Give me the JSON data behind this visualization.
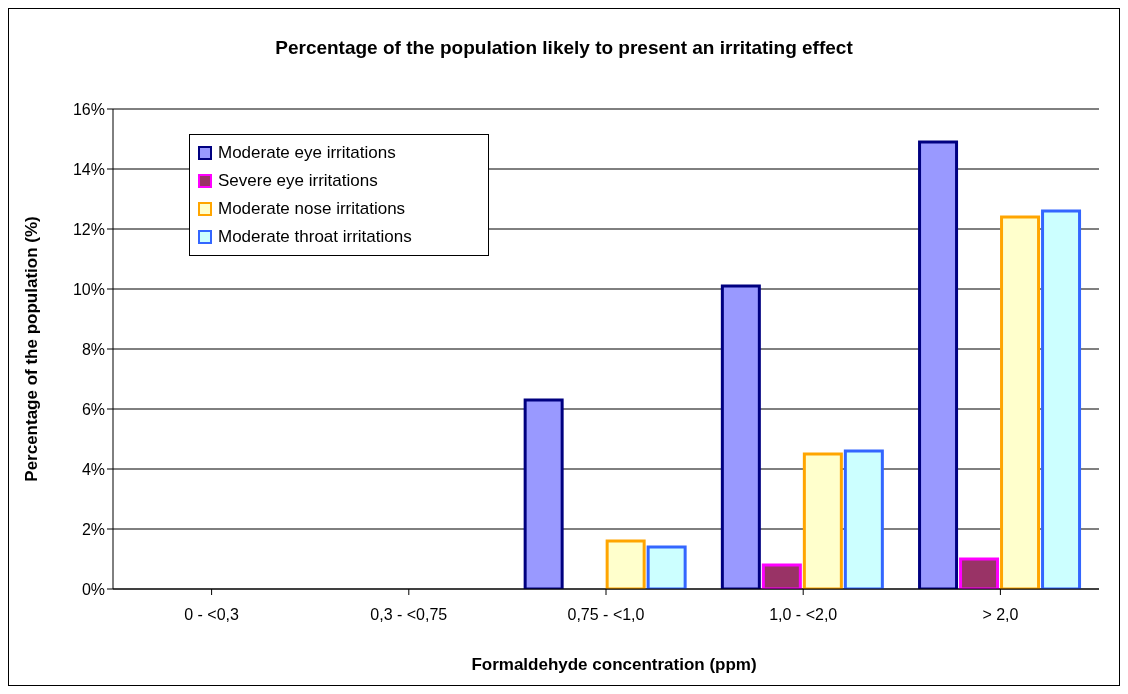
{
  "chart_data": {
    "type": "bar",
    "title": "Percentage of the population likely to present an irritating effect",
    "xlabel": "Formaldehyde concentration (ppm)",
    "ylabel": "Percentage of the population (%)",
    "categories": [
      "0 - <0,3",
      "0,3 - <0,75",
      "0,75 - <1,0",
      "1,0 - <2,0",
      "> 2,0"
    ],
    "series": [
      {
        "name": "Moderate eye irritations",
        "color": "#9999ff",
        "values": [
          0,
          0,
          6.3,
          10.1,
          14.9
        ]
      },
      {
        "name": "Severe eye irritations",
        "color": "#993366",
        "values": [
          0,
          0,
          0,
          0.8,
          1.0
        ]
      },
      {
        "name": "Moderate nose irritations",
        "color": "#ffffcc",
        "values": [
          0,
          0,
          1.6,
          4.5,
          12.4
        ]
      },
      {
        "name": "Moderate throat irritations",
        "color": "#ccffff",
        "values": [
          0,
          0,
          1.4,
          4.6,
          12.6
        ]
      }
    ],
    "ylim": [
      0,
      16
    ],
    "yticks": [
      {
        "value": 0,
        "label": "0%"
      },
      {
        "value": 2,
        "label": "2%"
      },
      {
        "value": 4,
        "label": "4%"
      },
      {
        "value": 6,
        "label": "6%"
      },
      {
        "value": 8,
        "label": "8%"
      },
      {
        "value": 10,
        "label": "10%"
      },
      {
        "value": 12,
        "label": "12%"
      },
      {
        "value": 14,
        "label": "14%"
      },
      {
        "value": 16,
        "label": "16%"
      }
    ],
    "grid": "y",
    "legend": "top left"
  }
}
